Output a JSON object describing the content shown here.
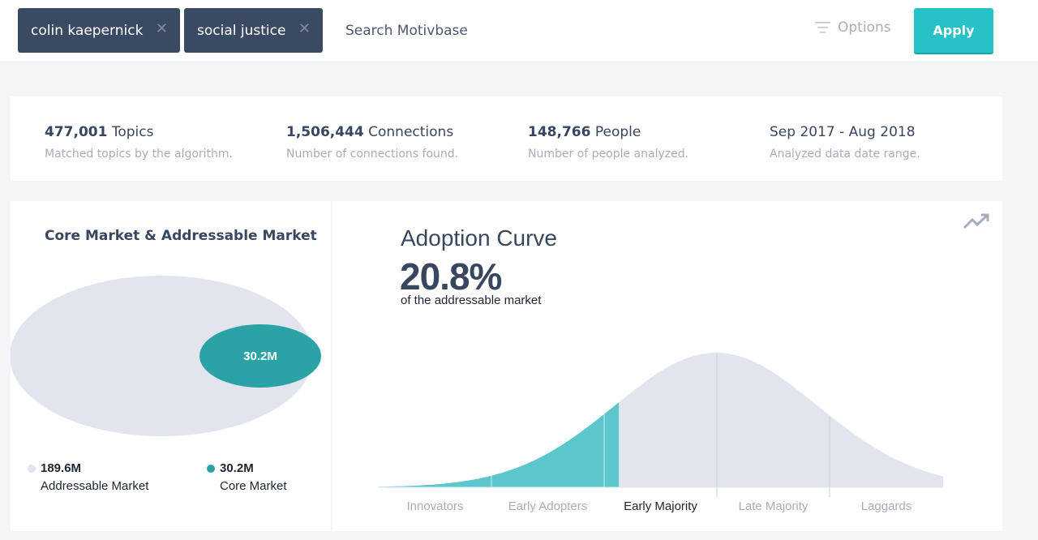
{
  "search": {
    "tags": [
      {
        "label": "colin kaepernick"
      },
      {
        "label": "social justice"
      }
    ],
    "placeholder": "Search Motivbase",
    "options_label": "Options",
    "apply_label": "Apply"
  },
  "stats": [
    {
      "value": "477,001",
      "unit": "Topics",
      "desc": "Matched topics by the algorithm."
    },
    {
      "value": "1,506,444",
      "unit": "Connections",
      "desc": "Number of connections found."
    },
    {
      "value": "148,766",
      "unit": "People",
      "desc": "Number of people analyzed."
    },
    {
      "value": "",
      "unit": "Sep 2017 - Aug 2018",
      "desc": "Analyzed data date range."
    }
  ],
  "market": {
    "title": "Core Market & Addressable Market",
    "addressable": {
      "value": "189.6M",
      "label": "Addressable Market",
      "color": "#e2e4ee"
    },
    "core": {
      "value": "30.2M",
      "label": "Core Market",
      "color": "#2ba3a6"
    }
  },
  "adoption": {
    "title": "Adoption Curve",
    "percent": "20.8%",
    "percent_caption": "of the addressable market",
    "segments": [
      "Innovators",
      "Early Adopters",
      "Early Majority",
      "Late Majority",
      "Laggards"
    ],
    "highlighted_segment": "Early Majority",
    "highlighted_fraction": 0.208,
    "colors": {
      "fill": "#5bc7cc",
      "base": "#e2e4ee",
      "divider": "#c9ccd6"
    }
  }
}
